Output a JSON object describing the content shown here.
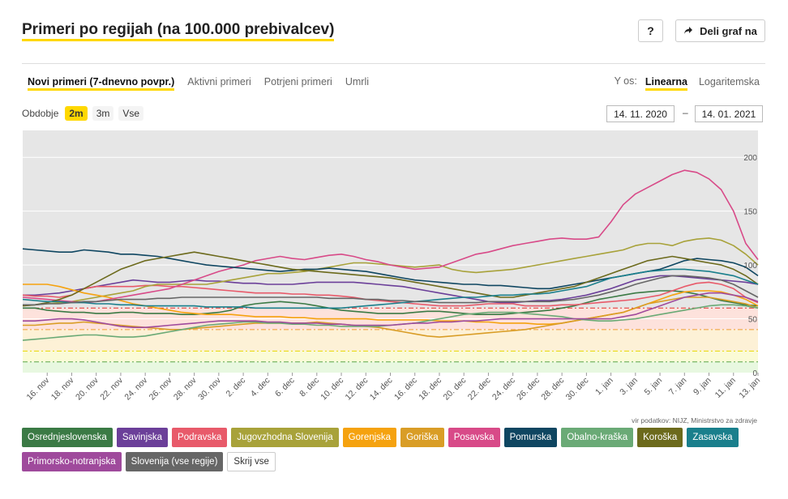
{
  "header": {
    "title": "Primeri po regijah (na 100.000 prebivalcev)",
    "help_label": "?",
    "share_label": "Deli graf na"
  },
  "tabs": [
    "Novi primeri (7-dnevno povpr.)",
    "Aktivni primeri",
    "Potrjeni primeri",
    "Umrli"
  ],
  "yaxis": {
    "label": "Y os:",
    "options": [
      "Linearna",
      "Logaritemska"
    ]
  },
  "period": {
    "label": "Obdobje",
    "options": [
      "2m",
      "3m",
      "Vse"
    ]
  },
  "date_range": {
    "from": "14. 11. 2020",
    "sep": "–",
    "to": "14. 01. 2021"
  },
  "source": "vir podatkov: NIJZ, Ministrstvo za zdravje",
  "hide_all": "Skrij vse",
  "colors": {
    "accent": "#ffd800"
  },
  "chart_data": {
    "type": "line",
    "title": "",
    "xlabel": "",
    "ylabel": "",
    "ylim": [
      0,
      225
    ],
    "yticks": [
      0,
      50,
      100,
      150,
      200
    ],
    "x_start": "2020-11-14",
    "x_days": 61,
    "xticks": [
      "16. nov",
      "18. nov",
      "20. nov",
      "22. nov",
      "24. nov",
      "26. nov",
      "28. nov",
      "30. nov",
      "2. dec",
      "4. dec",
      "6. dec",
      "8. dec",
      "10. dec",
      "12. dec",
      "14. dec",
      "16. dec",
      "18. dec",
      "20. dec",
      "22. dec",
      "24. dec",
      "26. dec",
      "28. dec",
      "30. dec",
      "1. jan",
      "3. jan",
      "5. jan",
      "7. jan",
      "9. jan",
      "11. jan",
      "13. jan"
    ],
    "bands": [
      {
        "from": 0,
        "to": 10,
        "color": "#e8f8e0"
      },
      {
        "from": 10,
        "to": 20,
        "color": "#fbfbd6"
      },
      {
        "from": 20,
        "to": 40,
        "color": "#fdf1d6"
      },
      {
        "from": 40,
        "to": 60,
        "color": "#fde2dc"
      },
      {
        "from": 60,
        "to": 225,
        "color": "#e6e6e6"
      }
    ],
    "thresholds": [
      {
        "value": 10,
        "color": "#5aa54a"
      },
      {
        "value": 20,
        "color": "#e8d800"
      },
      {
        "value": 40,
        "color": "#f0a030"
      },
      {
        "value": 60,
        "color": "#e03030"
      }
    ],
    "series": [
      {
        "name": "Osrednjeslovenska",
        "color": "#3b7a45",
        "values": [
          60,
          60,
          58,
          57,
          56,
          56,
          55,
          55,
          56,
          56,
          55,
          55,
          55,
          54,
          54,
          55,
          56,
          58,
          62,
          64,
          65,
          66,
          65,
          64,
          62,
          60,
          58,
          57,
          56,
          55,
          55,
          55,
          56,
          57,
          57,
          56,
          55,
          54,
          54,
          54,
          55,
          56,
          57,
          58,
          60,
          62,
          65,
          68,
          70,
          72,
          74,
          75,
          76,
          76,
          75,
          73,
          70,
          67,
          65,
          63,
          62
        ]
      },
      {
        "name": "Savinjska",
        "color": "#6b3f99",
        "values": [
          72,
          72,
          73,
          74,
          76,
          78,
          80,
          82,
          84,
          86,
          85,
          84,
          84,
          85,
          86,
          85,
          85,
          84,
          83,
          83,
          82,
          82,
          82,
          83,
          84,
          84,
          84,
          84,
          83,
          82,
          81,
          80,
          78,
          76,
          74,
          72,
          70,
          68,
          66,
          65,
          65,
          66,
          67,
          67,
          68,
          70,
          72,
          75,
          78,
          82,
          86,
          88,
          90,
          90,
          89,
          88,
          87,
          86,
          85,
          84,
          82
        ]
      },
      {
        "name": "Podravska",
        "color": "#e85a6a",
        "values": [
          72,
          71,
          71,
          70,
          72,
          78,
          80,
          80,
          80,
          80,
          81,
          81,
          80,
          80,
          79,
          78,
          77,
          76,
          75,
          74,
          74,
          74,
          73,
          73,
          72,
          72,
          71,
          70,
          68,
          67,
          66,
          65,
          64,
          63,
          62,
          62,
          62,
          63,
          64,
          64,
          64,
          62,
          62,
          62,
          63,
          63,
          64,
          65,
          66,
          67,
          68,
          70,
          72,
          76,
          80,
          83,
          84,
          82,
          78,
          70,
          65
        ]
      },
      {
        "name": "Jugovzhodna Slovenija",
        "color": "#a8a23a",
        "values": [
          62,
          63,
          64,
          65,
          66,
          68,
          70,
          72,
          74,
          76,
          80,
          82,
          82,
          82,
          82,
          82,
          84,
          86,
          88,
          90,
          92,
          92,
          93,
          94,
          96,
          98,
          100,
          102,
          102,
          101,
          100,
          99,
          98,
          99,
          100,
          96,
          94,
          93,
          94,
          95,
          96,
          98,
          100,
          102,
          104,
          106,
          108,
          110,
          112,
          114,
          118,
          120,
          120,
          118,
          122,
          124,
          125,
          123,
          118,
          110,
          100
        ]
      },
      {
        "name": "Gorenjska",
        "color": "#f5a20f",
        "values": [
          82,
          82,
          82,
          80,
          77,
          74,
          72,
          70,
          67,
          64,
          62,
          60,
          58,
          56,
          55,
          54,
          54,
          54,
          53,
          52,
          52,
          52,
          51,
          51,
          50,
          50,
          50,
          50,
          50,
          49,
          49,
          49,
          49,
          49,
          48,
          48,
          48,
          47,
          47,
          46,
          46,
          46,
          45,
          45,
          46,
          48,
          50,
          52,
          54,
          56,
          60,
          64,
          68,
          72,
          75,
          76,
          76,
          75,
          72,
          68,
          62
        ]
      },
      {
        "name": "Goriška",
        "color": "#d99d26",
        "values": [
          44,
          44,
          45,
          46,
          46,
          47,
          46,
          45,
          44,
          43,
          42,
          41,
          40,
          40,
          41,
          42,
          43,
          44,
          45,
          46,
          46,
          46,
          46,
          46,
          47,
          46,
          45,
          44,
          43,
          42,
          40,
          38,
          36,
          34,
          33,
          34,
          35,
          36,
          37,
          38,
          39,
          40,
          42,
          44,
          46,
          48,
          50,
          52,
          54,
          56,
          60,
          64,
          66,
          68,
          70,
          70,
          70,
          68,
          66,
          64,
          60
        ]
      },
      {
        "name": "Posavska",
        "color": "#d84a88",
        "values": [
          70,
          69,
          68,
          67,
          66,
          65,
          66,
          68,
          70,
          72,
          74,
          76,
          78,
          82,
          86,
          90,
          94,
          97,
          100,
          104,
          106,
          108,
          106,
          105,
          107,
          109,
          110,
          108,
          105,
          103,
          100,
          98,
          96,
          97,
          98,
          102,
          106,
          110,
          112,
          115,
          118,
          120,
          122,
          124,
          125,
          124,
          124,
          126,
          140,
          156,
          166,
          172,
          178,
          184,
          188,
          186,
          180,
          170,
          150,
          120,
          105
        ]
      },
      {
        "name": "Pomurska",
        "color": "#0f4661",
        "values": [
          115,
          114,
          113,
          112,
          112,
          114,
          113,
          112,
          110,
          110,
          109,
          108,
          106,
          104,
          102,
          100,
          99,
          98,
          97,
          96,
          95,
          94,
          95,
          96,
          96,
          97,
          96,
          95,
          94,
          92,
          90,
          88,
          86,
          85,
          84,
          83,
          82,
          82,
          81,
          81,
          80,
          79,
          78,
          78,
          80,
          82,
          84,
          86,
          88,
          90,
          92,
          94,
          96,
          100,
          104,
          106,
          105,
          104,
          102,
          98,
          90
        ]
      },
      {
        "name": "Obalno-kraška",
        "color": "#6aaa76",
        "values": [
          30,
          31,
          32,
          33,
          34,
          35,
          35,
          34,
          33,
          33,
          34,
          36,
          38,
          40,
          42,
          44,
          45,
          46,
          47,
          47,
          46,
          46,
          45,
          45,
          44,
          44,
          43,
          43,
          43,
          43,
          44,
          45,
          46,
          48,
          50,
          52,
          54,
          55,
          56,
          56,
          56,
          55,
          54,
          53,
          52,
          50,
          49,
          48,
          48,
          49,
          50,
          52,
          54,
          56,
          58,
          60,
          62,
          63,
          63,
          62,
          60
        ]
      },
      {
        "name": "Koroška",
        "color": "#6c6a1c",
        "values": [
          62,
          63,
          65,
          68,
          72,
          78,
          84,
          90,
          96,
          100,
          104,
          106,
          108,
          110,
          112,
          110,
          108,
          106,
          104,
          102,
          100,
          98,
          96,
          95,
          94,
          93,
          92,
          91,
          90,
          89,
          88,
          86,
          84,
          82,
          80,
          78,
          76,
          74,
          72,
          70,
          70,
          72,
          74,
          76,
          78,
          80,
          84,
          88,
          92,
          96,
          100,
          104,
          106,
          108,
          106,
          104,
          102,
          100,
          96,
          90,
          82
        ]
      },
      {
        "name": "Zasavska",
        "color": "#1a7f8c",
        "values": [
          68,
          67,
          66,
          66,
          65,
          65,
          64,
          64,
          63,
          63,
          62,
          62,
          62,
          62,
          62,
          61,
          61,
          61,
          61,
          60,
          60,
          60,
          60,
          60,
          60,
          60,
          60,
          61,
          62,
          63,
          64,
          65,
          66,
          67,
          68,
          69,
          70,
          70,
          71,
          72,
          72,
          73,
          73,
          74,
          76,
          78,
          80,
          84,
          88,
          90,
          92,
          94,
          95,
          96,
          96,
          95,
          94,
          92,
          90,
          86,
          82
        ]
      },
      {
        "name": "Primorsko-notranjska",
        "color": "#9f4a9c",
        "values": [
          48,
          48,
          49,
          50,
          50,
          49,
          47,
          45,
          43,
          42,
          42,
          43,
          44,
          45,
          46,
          47,
          48,
          48,
          48,
          48,
          47,
          47,
          46,
          46,
          46,
          45,
          45,
          44,
          44,
          44,
          44,
          45,
          46,
          46,
          47,
          47,
          48,
          48,
          49,
          50,
          50,
          50,
          50,
          50,
          50,
          50,
          50,
          50,
          50,
          52,
          54,
          58,
          62,
          66,
          70,
          72,
          74,
          74,
          72,
          70,
          66
        ]
      },
      {
        "name": "Slovenija (vse regije)",
        "color": "#666666",
        "values": [
          63,
          63,
          64,
          64,
          65,
          66,
          66,
          67,
          68,
          68,
          68,
          69,
          69,
          70,
          70,
          70,
          70,
          70,
          70,
          70,
          70,
          70,
          70,
          70,
          70,
          69,
          69,
          69,
          68,
          68,
          67,
          67,
          66,
          66,
          65,
          65,
          65,
          65,
          66,
          66,
          66,
          66,
          66,
          66,
          67,
          68,
          70,
          72,
          75,
          78,
          82,
          85,
          88,
          90,
          90,
          89,
          88,
          86,
          82,
          76,
          70
        ]
      }
    ]
  }
}
